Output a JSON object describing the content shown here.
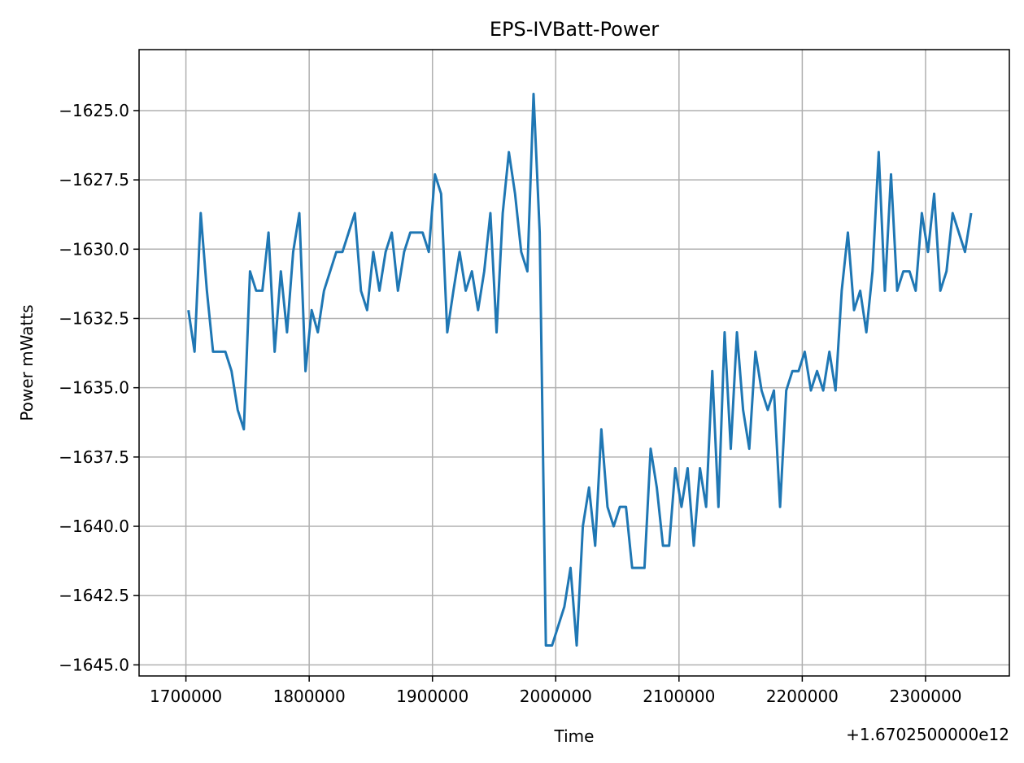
{
  "chart_data": {
    "type": "line",
    "title": "EPS-IVBatt-Power",
    "xlabel": "Time",
    "ylabel": "Power mWatts",
    "x_offset_text": "+1.6702500000e12",
    "xlim": [
      1670251662000,
      1670252368000
    ],
    "ylim": [
      -1645.4,
      -1622.8
    ],
    "grid": true,
    "x_ticks": [
      {
        "value": 1670251700000,
        "label": "1700000"
      },
      {
        "value": 1670251800000,
        "label": "1800000"
      },
      {
        "value": 1670251900000,
        "label": "1900000"
      },
      {
        "value": 1670252000000,
        "label": "2000000"
      },
      {
        "value": 1670252100000,
        "label": "2100000"
      },
      {
        "value": 1670252200000,
        "label": "2200000"
      },
      {
        "value": 1670252300000,
        "label": "2300000"
      }
    ],
    "y_ticks": [
      {
        "value": -1625.0,
        "label": "−1625.0"
      },
      {
        "value": -1627.5,
        "label": "−1627.5"
      },
      {
        "value": -1630.0,
        "label": "−1630.0"
      },
      {
        "value": -1632.5,
        "label": "−1632.5"
      },
      {
        "value": -1635.0,
        "label": "−1635.0"
      },
      {
        "value": -1637.5,
        "label": "−1637.5"
      },
      {
        "value": -1640.0,
        "label": "−1640.0"
      },
      {
        "value": -1642.5,
        "label": "−1642.5"
      },
      {
        "value": -1645.0,
        "label": "−1645.0"
      }
    ],
    "series": [
      {
        "name": "",
        "color": "#1f77b4",
        "x": [
          1670251702000,
          1670251707000,
          1670251712000,
          1670251717000,
          1670251722000,
          1670251727000,
          1670251732000,
          1670251737000,
          1670251742000,
          1670251747000,
          1670251752000,
          1670251757000,
          1670251762000,
          1670251767000,
          1670251772000,
          1670251777000,
          1670251782000,
          1670251787000,
          1670251792000,
          1670251797000,
          1670251802000,
          1670251807000,
          1670251812000,
          1670251817000,
          1670251822000,
          1670251827000,
          1670251832000,
          1670251837000,
          1670251842000,
          1670251847000,
          1670251852000,
          1670251857000,
          1670251862000,
          1670251867000,
          1670251872000,
          1670251877000,
          1670251882000,
          1670251887000,
          1670251892000,
          1670251897000,
          1670251902000,
          1670251907000,
          1670251912000,
          1670251917000,
          1670251922000,
          1670251927000,
          1670251932000,
          1670251937000,
          1670251942000,
          1670251947000,
          1670251952000,
          1670251957000,
          1670251962000,
          1670251967000,
          1670251972000,
          1670251977000,
          1670251982000,
          1670251987000,
          1670251992000,
          1670251997000,
          1670252002000,
          1670252007000,
          1670252012000,
          1670252017000,
          1670252022000,
          1670252027000,
          1670252032000,
          1670252037000,
          1670252042000,
          1670252047000,
          1670252052000,
          1670252057000,
          1670252062000,
          1670252067000,
          1670252072000,
          1670252077000,
          1670252082000,
          1670252087000,
          1670252092000,
          1670252097000,
          1670252102000,
          1670252107000,
          1670252112000,
          1670252117000,
          1670252122000,
          1670252127000,
          1670252132000,
          1670252137000,
          1670252142000,
          1670252147000,
          1670252152000,
          1670252157000,
          1670252162000,
          1670252167000,
          1670252172000,
          1670252177000,
          1670252182000,
          1670252187000,
          1670252192000,
          1670252197000,
          1670252202000,
          1670252207000,
          1670252212000,
          1670252217000,
          1670252222000,
          1670252227000,
          1670252232000,
          1670252237000,
          1670252242000,
          1670252247000,
          1670252252000,
          1670252257000,
          1670252262000,
          1670252267000,
          1670252272000,
          1670252277000,
          1670252282000,
          1670252287000,
          1670252292000,
          1670252297000,
          1670252302000,
          1670252307000,
          1670252312000,
          1670252317000,
          1670252322000,
          1670252327000,
          1670252332000,
          1670252337000
        ],
        "y": [
          -1632.2,
          -1633.7,
          -1628.7,
          -1631.5,
          -1633.7,
          -1633.7,
          -1633.7,
          -1634.4,
          -1635.8,
          -1636.5,
          -1630.8,
          -1631.5,
          -1631.5,
          -1629.4,
          -1633.7,
          -1630.8,
          -1633.0,
          -1630.1,
          -1628.7,
          -1634.4,
          -1632.2,
          -1633.0,
          -1631.5,
          -1630.8,
          -1630.1,
          -1630.1,
          -1629.4,
          -1628.7,
          -1631.5,
          -1632.2,
          -1630.1,
          -1631.5,
          -1630.1,
          -1629.4,
          -1631.5,
          -1630.1,
          -1629.4,
          -1629.4,
          -1629.4,
          -1630.1,
          -1627.3,
          -1628.0,
          -1633.0,
          -1631.5,
          -1630.1,
          -1631.5,
          -1630.8,
          -1632.2,
          -1630.8,
          -1628.7,
          -1633.0,
          -1628.7,
          -1626.5,
          -1628.0,
          -1630.1,
          -1630.8,
          -1624.4,
          -1629.4,
          -1644.3,
          -1644.3,
          -1643.6,
          -1642.9,
          -1641.5,
          -1644.3,
          -1640.0,
          -1638.6,
          -1640.7,
          -1636.5,
          -1639.3,
          -1640.0,
          -1639.3,
          -1639.3,
          -1641.5,
          -1641.5,
          -1641.5,
          -1637.2,
          -1638.6,
          -1640.7,
          -1640.7,
          -1637.9,
          -1639.3,
          -1637.9,
          -1640.7,
          -1637.9,
          -1639.3,
          -1634.4,
          -1639.3,
          -1633.0,
          -1637.2,
          -1633.0,
          -1635.8,
          -1637.2,
          -1633.7,
          -1635.1,
          -1635.8,
          -1635.1,
          -1639.3,
          -1635.1,
          -1634.4,
          -1634.4,
          -1633.7,
          -1635.1,
          -1634.4,
          -1635.1,
          -1633.7,
          -1635.1,
          -1631.5,
          -1629.4,
          -1632.2,
          -1631.5,
          -1633.0,
          -1630.8,
          -1626.5,
          -1631.5,
          -1627.3,
          -1631.5,
          -1630.8,
          -1630.8,
          -1631.5,
          -1628.7,
          -1630.1,
          -1628.0,
          -1631.5,
          -1630.8,
          -1628.7,
          -1629.4,
          -1630.1,
          -1628.7
        ]
      }
    ]
  }
}
